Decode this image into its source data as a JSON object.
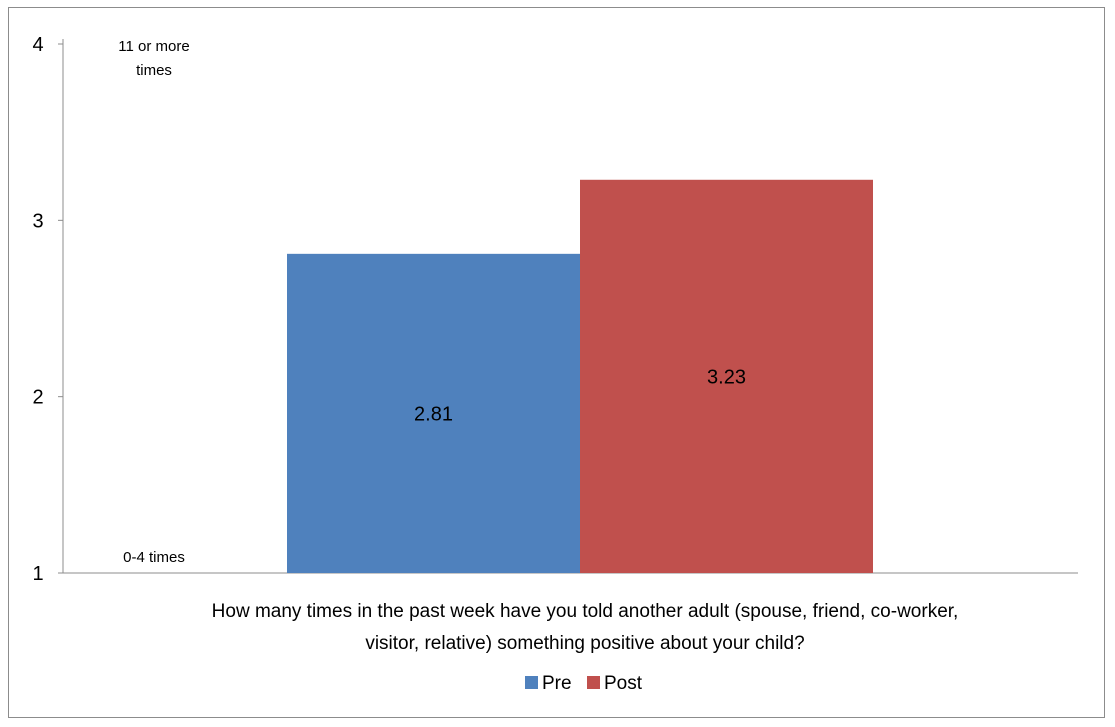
{
  "chart_data": {
    "type": "bar",
    "categories": [
      "How many times in the past week have you told another adult (spouse, friend, co-worker, visitor, relative) something positive about your child?"
    ],
    "series": [
      {
        "name": "Pre",
        "values": [
          2.81
        ],
        "color": "#4F81BD"
      },
      {
        "name": "Post",
        "values": [
          3.23
        ],
        "color": "#C0504D"
      }
    ],
    "xlabel_lines": [
      "How many times in the past week have you told another adult (spouse, friend, co-worker,",
      "visitor, relative) something positive about your child?"
    ],
    "ylim": [
      1,
      4
    ],
    "yticks": [
      1,
      2,
      3,
      4
    ],
    "y_anchor_labels": [
      {
        "value": 4,
        "lines": [
          "11 or more",
          "times"
        ]
      },
      {
        "value": 1,
        "lines": [
          "0-4 times"
        ]
      }
    ],
    "data_labels": [
      "2.81",
      "3.23"
    ],
    "legend": {
      "position": "bottom",
      "entries": [
        "Pre",
        "Post"
      ]
    },
    "grid": false
  }
}
